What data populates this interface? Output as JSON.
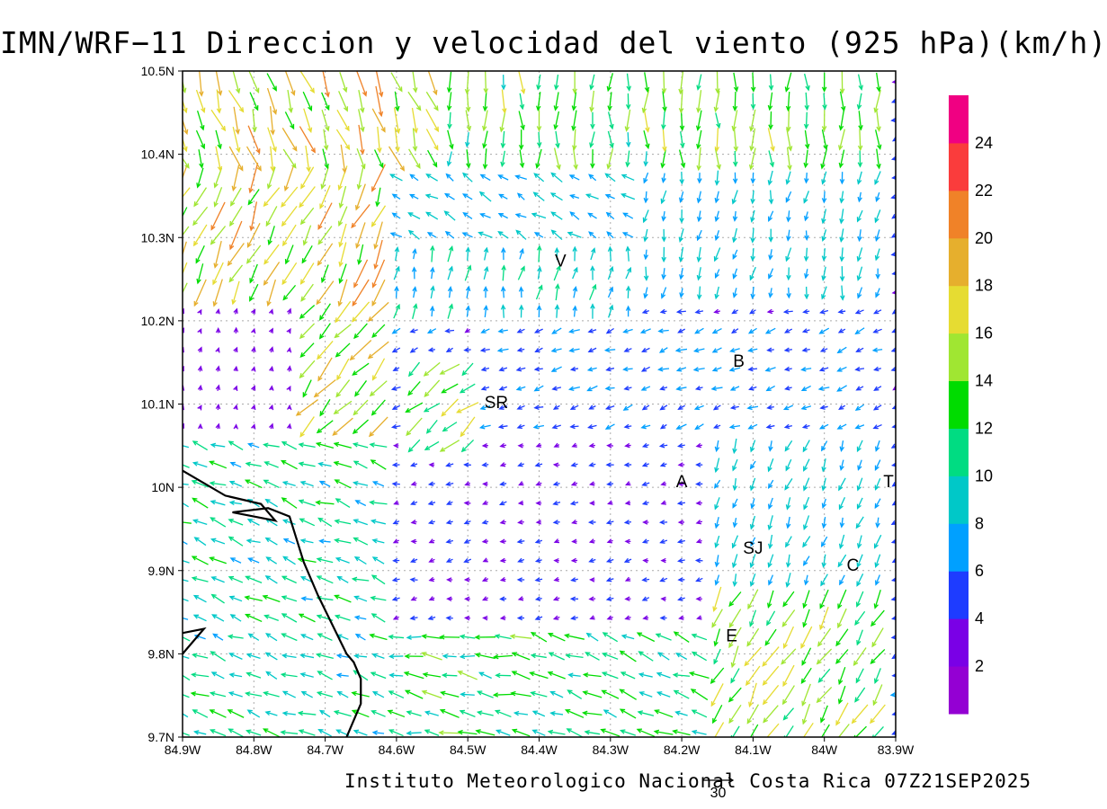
{
  "title": "IMN/WRF−11 Direccion y velocidad del viento (925 hPa)(km/h)",
  "credit": "Instituto Meteorologico Nacional Costa Rica 07Z21SEP2025",
  "chart_data": {
    "type": "vector-field",
    "x_axis": {
      "min": -84.9,
      "max": -83.9,
      "ticks": [
        {
          "value": -84.9,
          "label": "84.9W"
        },
        {
          "value": -84.8,
          "label": "84.8W"
        },
        {
          "value": -84.7,
          "label": "84.7W"
        },
        {
          "value": -84.6,
          "label": "84.6W"
        },
        {
          "value": -84.5,
          "label": "84.5W"
        },
        {
          "value": -84.4,
          "label": "84.4W"
        },
        {
          "value": -84.3,
          "label": "84.3W"
        },
        {
          "value": -84.2,
          "label": "84.2W"
        },
        {
          "value": -84.1,
          "label": "84.1W"
        },
        {
          "value": -84.0,
          "label": "84W"
        },
        {
          "value": -83.9,
          "label": "83.9W"
        }
      ]
    },
    "y_axis": {
      "min": 9.7,
      "max": 10.5,
      "ticks": [
        {
          "value": 9.7,
          "label": "9.7N"
        },
        {
          "value": 9.8,
          "label": "9.8N"
        },
        {
          "value": 9.9,
          "label": "9.9N"
        },
        {
          "value": 10.0,
          "label": "10N"
        },
        {
          "value": 10.1,
          "label": "10.1N"
        },
        {
          "value": 10.2,
          "label": "10.2N"
        },
        {
          "value": 10.3,
          "label": "10.3N"
        },
        {
          "value": 10.4,
          "label": "10.4N"
        },
        {
          "value": 10.5,
          "label": "10.5N"
        }
      ]
    },
    "grid": true,
    "colorbar": {
      "position": "right",
      "labels": [
        "2",
        "4",
        "6",
        "8",
        "10",
        "12",
        "14",
        "16",
        "18",
        "20",
        "22",
        "24"
      ],
      "colors": [
        "#9400d3",
        "#7a00e6",
        "#1e3cff",
        "#00a0ff",
        "#00c8c8",
        "#00dc82",
        "#00dc00",
        "#a0e632",
        "#e6dc32",
        "#e6af2d",
        "#f08228",
        "#fa3c3c",
        "#f00082"
      ]
    },
    "reference_vector": {
      "label": "30",
      "speed_kmh": 30
    },
    "cities": [
      {
        "label": "V",
        "lon": -84.37,
        "lat": 10.265
      },
      {
        "label": "B",
        "lon": -84.12,
        "lat": 10.145
      },
      {
        "label": "SR",
        "lon": -84.46,
        "lat": 10.095
      },
      {
        "label": "A",
        "lon": -84.2,
        "lat": 10.0
      },
      {
        "label": "T",
        "lon": -83.91,
        "lat": 10.0
      },
      {
        "label": "SJ",
        "lon": -84.1,
        "lat": 9.92
      },
      {
        "label": "C",
        "lon": -83.96,
        "lat": 9.9
      },
      {
        "label": "E",
        "lon": -84.13,
        "lat": 9.815
      }
    ],
    "coastline": [
      [
        -84.9,
        10.02
      ],
      [
        -84.84,
        9.99
      ],
      [
        -84.79,
        9.98
      ],
      [
        -84.77,
        9.96
      ],
      [
        -84.83,
        9.97
      ],
      [
        -84.78,
        9.975
      ],
      [
        -84.75,
        9.965
      ],
      [
        -84.73,
        9.91
      ],
      [
        -84.71,
        9.87
      ],
      [
        -84.67,
        9.8
      ],
      [
        -84.66,
        9.79
      ],
      [
        -84.65,
        9.77
      ],
      [
        -84.65,
        9.74
      ],
      [
        -84.66,
        9.72
      ],
      [
        -84.67,
        9.7
      ]
    ],
    "coastline2": [
      [
        -84.9,
        9.8
      ],
      [
        -84.87,
        9.83
      ],
      [
        -84.9,
        9.825
      ]
    ],
    "wind_regions": [
      {
        "lon_min": -84.54,
        "lon_max": -83.9,
        "lat_min": 10.38,
        "lat_max": 10.5,
        "dir_deg": 270,
        "speed_kmh": 13
      },
      {
        "lon_min": -84.9,
        "lon_max": -84.54,
        "lat_min": 10.38,
        "lat_max": 10.5,
        "dir_deg": 290,
        "speed_kmh": 17
      },
      {
        "lon_min": -84.9,
        "lon_max": -84.62,
        "lat_min": 10.22,
        "lat_max": 10.38,
        "dir_deg": 245,
        "speed_kmh": 17
      },
      {
        "lon_min": -84.62,
        "lon_max": -84.25,
        "lat_min": 10.28,
        "lat_max": 10.38,
        "dir_deg": 150,
        "speed_kmh": 8
      },
      {
        "lon_min": -84.25,
        "lon_max": -83.9,
        "lat_min": 10.22,
        "lat_max": 10.38,
        "dir_deg": 260,
        "speed_kmh": 8
      },
      {
        "lon_min": -84.62,
        "lon_max": -84.25,
        "lat_min": 10.19,
        "lat_max": 10.28,
        "dir_deg": 80,
        "speed_kmh": 9
      },
      {
        "lon_min": -84.74,
        "lon_max": -84.62,
        "lat_min": 10.05,
        "lat_max": 10.22,
        "dir_deg": 230,
        "speed_kmh": 16
      },
      {
        "lon_min": -84.58,
        "lon_max": -84.48,
        "lat_min": 10.04,
        "lat_max": 10.16,
        "dir_deg": 220,
        "speed_kmh": 14
      },
      {
        "lon_min": -84.9,
        "lon_max": -84.74,
        "lat_min": 10.05,
        "lat_max": 10.22,
        "dir_deg": 75,
        "speed_kmh": 3
      },
      {
        "lon_min": -84.48,
        "lon_max": -83.9,
        "lat_min": 10.05,
        "lat_max": 10.19,
        "dir_deg": 200,
        "speed_kmh": 6
      },
      {
        "lon_min": -84.9,
        "lon_max": -84.62,
        "lat_min": 9.7,
        "lat_max": 10.05,
        "dir_deg": 160,
        "speed_kmh": 10
      },
      {
        "lon_min": -84.62,
        "lon_max": -84.42,
        "lat_min": 9.7,
        "lat_max": 9.82,
        "dir_deg": 170,
        "speed_kmh": 12
      },
      {
        "lon_min": -84.62,
        "lon_max": -84.15,
        "lat_min": 9.82,
        "lat_max": 10.05,
        "dir_deg": 190,
        "speed_kmh": 4
      },
      {
        "lon_min": -84.42,
        "lon_max": -84.15,
        "lat_min": 9.7,
        "lat_max": 9.82,
        "dir_deg": 160,
        "speed_kmh": 11
      },
      {
        "lon_min": -84.15,
        "lon_max": -83.9,
        "lat_min": 9.88,
        "lat_max": 10.05,
        "dir_deg": 250,
        "speed_kmh": 8
      },
      {
        "lon_min": -84.15,
        "lon_max": -83.9,
        "lat_min": 9.7,
        "lat_max": 9.88,
        "dir_deg": 240,
        "speed_kmh": 14
      }
    ]
  }
}
